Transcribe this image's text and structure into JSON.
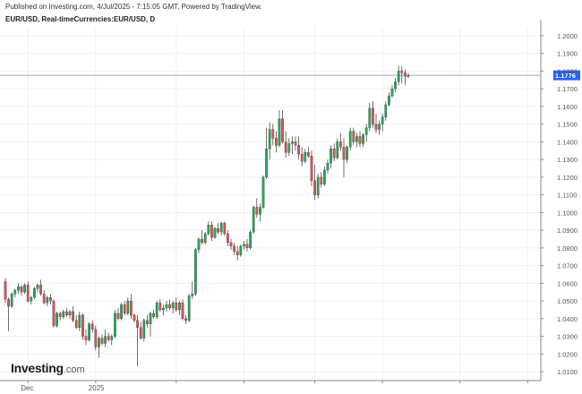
{
  "header": {
    "published": "Published on Investing.com, 4/Jul/2025 - 7:15:05 GMT, Powered by TradingView.",
    "symbol": "EUR/USD, Real-timeCurrencies:EUR/USD, D"
  },
  "logo": {
    "name": "Investing",
    "suffix": ".com"
  },
  "chart_data": {
    "type": "candlestick",
    "interval": "D",
    "y_axis_side": "right",
    "ylim": [
      1.005,
      1.205
    ],
    "yticks": [
      "1.0100",
      "1.0200",
      "1.0300",
      "1.0400",
      "1.0500",
      "1.0600",
      "1.0700",
      "1.0800",
      "1.0900",
      "1.1000",
      "1.1100",
      "1.1200",
      "1.1300",
      "1.1400",
      "1.1500",
      "1.1600",
      "1.1700",
      "1.1800",
      "1.1900",
      "1.2000"
    ],
    "xticks": [
      {
        "label": "Dec",
        "bar": 7
      },
      {
        "label": "2025",
        "bar": 28
      },
      {
        "label": "",
        "bar": 53
      },
      {
        "label": "",
        "bar": 74
      },
      {
        "label": "",
        "bar": 96
      },
      {
        "label": "",
        "bar": 117
      },
      {
        "label": "",
        "bar": 141
      },
      {
        "label": "",
        "bar": 162
      }
    ],
    "current_price": 1.1776,
    "current_label": "1.1776",
    "colors": {
      "up": "#26a65b",
      "down": "#d9534f",
      "wick": "#333333",
      "price_line": "#9aa5d9",
      "price_label_bg": "#2962ff"
    },
    "candles": [
      [
        1.061,
        1.063,
        1.049,
        1.051
      ],
      [
        1.051,
        1.052,
        1.033,
        1.047
      ],
      [
        1.047,
        1.055,
        1.046,
        1.054
      ],
      [
        1.054,
        1.057,
        1.052,
        1.056
      ],
      [
        1.056,
        1.06,
        1.054,
        1.058
      ],
      [
        1.058,
        1.059,
        1.053,
        1.055
      ],
      [
        1.055,
        1.06,
        1.054,
        1.059
      ],
      [
        1.059,
        1.061,
        1.049,
        1.05
      ],
      [
        1.05,
        1.053,
        1.048,
        1.052
      ],
      [
        1.052,
        1.058,
        1.051,
        1.057
      ],
      [
        1.057,
        1.06,
        1.055,
        1.059
      ],
      [
        1.059,
        1.062,
        1.053,
        1.054
      ],
      [
        1.054,
        1.056,
        1.048,
        1.049
      ],
      [
        1.049,
        1.053,
        1.047,
        1.052
      ],
      [
        1.052,
        1.054,
        1.048,
        1.05
      ],
      [
        1.05,
        1.051,
        1.035,
        1.036
      ],
      [
        1.036,
        1.044,
        1.035,
        1.043
      ],
      [
        1.043,
        1.044,
        1.039,
        1.041
      ],
      [
        1.041,
        1.045,
        1.04,
        1.044
      ],
      [
        1.044,
        1.046,
        1.041,
        1.042
      ],
      [
        1.042,
        1.045,
        1.04,
        1.044
      ],
      [
        1.044,
        1.047,
        1.038,
        1.039
      ],
      [
        1.039,
        1.042,
        1.034,
        1.035
      ],
      [
        1.035,
        1.044,
        1.033,
        1.042
      ],
      [
        1.042,
        1.043,
        1.028,
        1.03
      ],
      [
        1.03,
        1.034,
        1.025,
        1.028
      ],
      [
        1.028,
        1.038,
        1.027,
        1.037
      ],
      [
        1.037,
        1.039,
        1.032,
        1.034
      ],
      [
        1.034,
        1.036,
        1.022,
        1.024
      ],
      [
        1.024,
        1.03,
        1.018,
        1.029
      ],
      [
        1.029,
        1.031,
        1.025,
        1.026
      ],
      [
        1.026,
        1.034,
        1.024,
        1.03
      ],
      [
        1.03,
        1.032,
        1.027,
        1.028
      ],
      [
        1.028,
        1.031,
        1.025,
        1.03
      ],
      [
        1.03,
        1.045,
        1.029,
        1.043
      ],
      [
        1.043,
        1.046,
        1.039,
        1.04
      ],
      [
        1.04,
        1.049,
        1.039,
        1.048
      ],
      [
        1.048,
        1.05,
        1.042,
        1.043
      ],
      [
        1.043,
        1.052,
        1.042,
        1.05
      ],
      [
        1.05,
        1.054,
        1.04,
        1.042
      ],
      [
        1.042,
        1.043,
        1.038,
        1.039
      ],
      [
        1.039,
        1.042,
        1.013,
        1.035
      ],
      [
        1.035,
        1.038,
        1.028,
        1.029
      ],
      [
        1.029,
        1.04,
        1.027,
        1.039
      ],
      [
        1.039,
        1.042,
        1.035,
        1.037
      ],
      [
        1.037,
        1.044,
        1.03,
        1.043
      ],
      [
        1.043,
        1.045,
        1.04,
        1.041
      ],
      [
        1.041,
        1.05,
        1.04,
        1.049
      ],
      [
        1.049,
        1.051,
        1.044,
        1.045
      ],
      [
        1.045,
        1.048,
        1.042,
        1.046
      ],
      [
        1.046,
        1.05,
        1.044,
        1.048
      ],
      [
        1.048,
        1.051,
        1.045,
        1.046
      ],
      [
        1.046,
        1.05,
        1.043,
        1.049
      ],
      [
        1.049,
        1.052,
        1.044,
        1.045
      ],
      [
        1.045,
        1.05,
        1.042,
        1.049
      ],
      [
        1.049,
        1.051,
        1.039,
        1.04
      ],
      [
        1.04,
        1.042,
        1.037,
        1.039
      ],
      [
        1.039,
        1.054,
        1.038,
        1.053
      ],
      [
        1.053,
        1.061,
        1.051,
        1.054
      ],
      [
        1.054,
        1.08,
        1.053,
        1.079
      ],
      [
        1.079,
        1.086,
        1.077,
        1.085
      ],
      [
        1.085,
        1.09,
        1.082,
        1.083
      ],
      [
        1.083,
        1.089,
        1.082,
        1.088
      ],
      [
        1.088,
        1.095,
        1.087,
        1.093
      ],
      [
        1.093,
        1.095,
        1.084,
        1.086
      ],
      [
        1.086,
        1.092,
        1.085,
        1.091
      ],
      [
        1.091,
        1.094,
        1.088,
        1.089
      ],
      [
        1.089,
        1.095,
        1.087,
        1.094
      ],
      [
        1.094,
        1.095,
        1.087,
        1.088
      ],
      [
        1.088,
        1.09,
        1.081,
        1.083
      ],
      [
        1.083,
        1.085,
        1.079,
        1.081
      ],
      [
        1.081,
        1.083,
        1.076,
        1.078
      ],
      [
        1.078,
        1.081,
        1.073,
        1.076
      ],
      [
        1.076,
        1.082,
        1.075,
        1.081
      ],
      [
        1.081,
        1.084,
        1.079,
        1.082
      ],
      [
        1.082,
        1.085,
        1.078,
        1.08
      ],
      [
        1.08,
        1.09,
        1.079,
        1.089
      ],
      [
        1.089,
        1.104,
        1.088,
        1.103
      ],
      [
        1.103,
        1.108,
        1.097,
        1.099
      ],
      [
        1.099,
        1.105,
        1.095,
        1.103
      ],
      [
        1.103,
        1.121,
        1.102,
        1.12
      ],
      [
        1.12,
        1.148,
        1.119,
        1.136
      ],
      [
        1.136,
        1.151,
        1.13,
        1.147
      ],
      [
        1.147,
        1.15,
        1.138,
        1.142
      ],
      [
        1.142,
        1.146,
        1.134,
        1.138
      ],
      [
        1.138,
        1.158,
        1.137,
        1.153
      ],
      [
        1.153,
        1.158,
        1.139,
        1.14
      ],
      [
        1.14,
        1.146,
        1.131,
        1.134
      ],
      [
        1.134,
        1.142,
        1.132,
        1.139
      ],
      [
        1.139,
        1.143,
        1.133,
        1.14
      ],
      [
        1.14,
        1.143,
        1.135,
        1.138
      ],
      [
        1.138,
        1.143,
        1.13,
        1.133
      ],
      [
        1.133,
        1.137,
        1.126,
        1.129
      ],
      [
        1.129,
        1.136,
        1.128,
        1.134
      ],
      [
        1.134,
        1.137,
        1.131,
        1.132
      ],
      [
        1.132,
        1.135,
        1.115,
        1.118
      ],
      [
        1.118,
        1.127,
        1.107,
        1.11
      ],
      [
        1.11,
        1.122,
        1.108,
        1.12
      ],
      [
        1.12,
        1.123,
        1.114,
        1.116
      ],
      [
        1.116,
        1.126,
        1.115,
        1.124
      ],
      [
        1.124,
        1.13,
        1.122,
        1.128
      ],
      [
        1.128,
        1.138,
        1.125,
        1.136
      ],
      [
        1.136,
        1.139,
        1.129,
        1.131
      ],
      [
        1.131,
        1.142,
        1.13,
        1.14
      ],
      [
        1.14,
        1.145,
        1.135,
        1.137
      ],
      [
        1.137,
        1.142,
        1.12,
        1.13
      ],
      [
        1.13,
        1.138,
        1.128,
        1.137
      ],
      [
        1.137,
        1.148,
        1.135,
        1.146
      ],
      [
        1.146,
        1.148,
        1.138,
        1.14
      ],
      [
        1.14,
        1.145,
        1.137,
        1.143
      ],
      [
        1.143,
        1.146,
        1.137,
        1.139
      ],
      [
        1.139,
        1.145,
        1.137,
        1.144
      ],
      [
        1.144,
        1.15,
        1.14,
        1.148
      ],
      [
        1.148,
        1.162,
        1.146,
        1.159
      ],
      [
        1.159,
        1.163,
        1.148,
        1.15
      ],
      [
        1.15,
        1.156,
        1.145,
        1.147
      ],
      [
        1.147,
        1.152,
        1.144,
        1.15
      ],
      [
        1.15,
        1.156,
        1.146,
        1.154
      ],
      [
        1.154,
        1.163,
        1.152,
        1.161
      ],
      [
        1.161,
        1.168,
        1.16,
        1.166
      ],
      [
        1.166,
        1.172,
        1.165,
        1.17
      ],
      [
        1.17,
        1.176,
        1.168,
        1.174
      ],
      [
        1.174,
        1.183,
        1.172,
        1.18
      ],
      [
        1.18,
        1.183,
        1.173,
        1.179
      ],
      [
        1.179,
        1.181,
        1.172,
        1.177
      ],
      [
        1.177,
        1.179,
        1.176,
        1.1776
      ]
    ]
  }
}
